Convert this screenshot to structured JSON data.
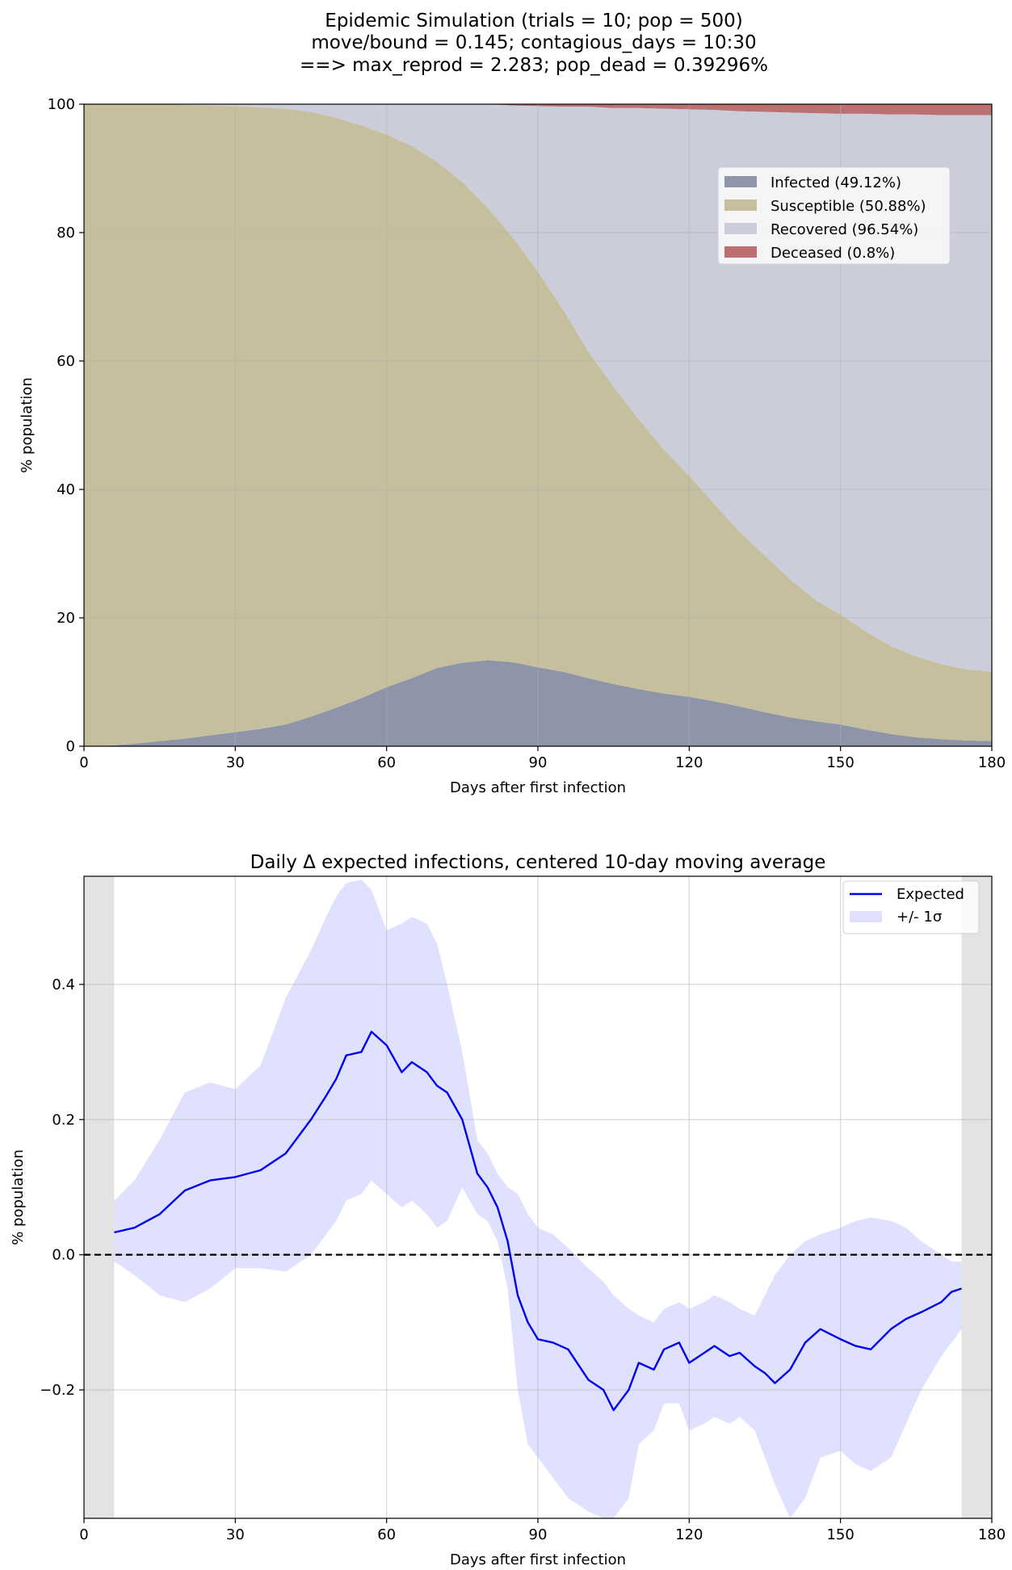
{
  "figure": {
    "title_lines": [
      "Epidemic Simulation (trials = 10; pop = 500)",
      "move/bound = 0.145; contagious_days = 10:30",
      "==> max_reprod = 2.283; pop_dead = 0.39296%"
    ]
  },
  "chart_data": [
    {
      "type": "area",
      "stacked": true,
      "xlabel": "Days after first infection",
      "ylabel": "% population",
      "xlim": [
        0,
        180
      ],
      "ylim": [
        0,
        100
      ],
      "xticks": [
        "0",
        "30",
        "60",
        "90",
        "120",
        "150",
        "180"
      ],
      "yticks": [
        "0",
        "20",
        "40",
        "60",
        "80",
        "100"
      ],
      "grid": true,
      "legend_position": "upper-right",
      "x": [
        0,
        5,
        10,
        15,
        20,
        25,
        30,
        35,
        40,
        45,
        50,
        55,
        60,
        65,
        70,
        75,
        80,
        85,
        90,
        95,
        100,
        105,
        110,
        115,
        120,
        125,
        130,
        135,
        140,
        145,
        150,
        155,
        160,
        165,
        170,
        175,
        180
      ],
      "series": [
        {
          "name": "Infected (49.12%)",
          "color": "#8f95a8",
          "values": [
            0,
            0.1,
            0.4,
            0.8,
            1.2,
            1.7,
            2.2,
            2.7,
            3.4,
            4.6,
            6.0,
            7.5,
            9.2,
            10.6,
            12.2,
            13.0,
            13.4,
            13.1,
            12.3,
            11.6,
            10.6,
            9.7,
            8.9,
            8.2,
            7.7,
            7.0,
            6.2,
            5.3,
            4.5,
            3.9,
            3.4,
            2.6,
            1.9,
            1.4,
            1.1,
            0.9,
            0.8
          ]
        },
        {
          "name": "Susceptible (50.88%)",
          "color": "#c5bf9e",
          "values": [
            100,
            99.9,
            99.6,
            99.2,
            98.7,
            98.1,
            97.5,
            96.8,
            95.9,
            94.2,
            91.9,
            89.2,
            86.1,
            82.9,
            78.8,
            74.9,
            70.5,
            66.2,
            61.6,
            56.4,
            50.9,
            46.3,
            42.0,
            38.0,
            34.4,
            30.7,
            27.2,
            24.4,
            21.5,
            18.9,
            17.1,
            15.3,
            13.7,
            12.6,
            11.7,
            11.1,
            10.8
          ]
        },
        {
          "name": "Recovered (96.54%)",
          "color": "#cccdda",
          "values": [
            0,
            0,
            0,
            0,
            0.1,
            0.2,
            0.3,
            0.5,
            0.7,
            1.2,
            2.1,
            3.3,
            4.7,
            6.5,
            9.0,
            12.1,
            16.1,
            20.5,
            25.8,
            31.6,
            38.1,
            43.4,
            48.5,
            53.1,
            57.1,
            61.4,
            65.5,
            69.1,
            72.7,
            75.8,
            78.0,
            80.6,
            82.8,
            84.4,
            85.5,
            86.3,
            86.7
          ]
        },
        {
          "name": "Deceased (0.8%)",
          "color": "#bd7071",
          "values": [
            0,
            0,
            0,
            0,
            0,
            0,
            0,
            0,
            0,
            0,
            0,
            0,
            0,
            0,
            0,
            0,
            0,
            0.2,
            0.3,
            0.4,
            0.4,
            0.6,
            0.6,
            0.7,
            0.8,
            0.9,
            1.1,
            1.2,
            1.3,
            1.4,
            1.5,
            1.5,
            1.6,
            1.6,
            1.7,
            1.7,
            1.7
          ]
        }
      ]
    },
    {
      "type": "line",
      "title": "Daily Δ expected infections, centered 10-day moving average",
      "xlabel": "Days after first infection",
      "ylabel": "% population",
      "xlim": [
        0,
        180
      ],
      "ylim": [
        -0.39,
        0.56
      ],
      "xticks": [
        "0",
        "30",
        "60",
        "90",
        "120",
        "150",
        "180"
      ],
      "yticks": [
        "−0.2",
        "0.0",
        "0.2",
        "0.4"
      ],
      "ytick_values": [
        -0.2,
        0.0,
        0.2,
        0.4
      ],
      "grid": true,
      "legend_position": "upper-right",
      "shaded_regions": [
        [
          0,
          6
        ],
        [
          174,
          180
        ]
      ],
      "zero_line": true,
      "x": [
        6,
        10,
        15,
        20,
        25,
        30,
        35,
        40,
        45,
        48,
        50,
        52,
        55,
        57,
        60,
        63,
        65,
        68,
        70,
        72,
        75,
        78,
        80,
        82,
        84,
        86,
        88,
        90,
        93,
        96,
        100,
        103,
        105,
        108,
        110,
        113,
        115,
        118,
        120,
        123,
        125,
        128,
        130,
        133,
        135,
        137,
        140,
        143,
        146,
        150,
        153,
        156,
        160,
        163,
        166,
        170,
        172,
        174
      ],
      "series": [
        {
          "name": "Expected",
          "color": "#0000ee",
          "values": [
            0.033,
            0.04,
            0.06,
            0.095,
            0.11,
            0.115,
            0.125,
            0.15,
            0.2,
            0.235,
            0.26,
            0.295,
            0.3,
            0.33,
            0.31,
            0.27,
            0.285,
            0.27,
            0.25,
            0.24,
            0.2,
            0.12,
            0.1,
            0.07,
            0.02,
            -0.06,
            -0.1,
            -0.125,
            -0.13,
            -0.14,
            -0.185,
            -0.2,
            -0.23,
            -0.2,
            -0.16,
            -0.17,
            -0.14,
            -0.13,
            -0.16,
            -0.145,
            -0.135,
            -0.15,
            -0.145,
            -0.165,
            -0.175,
            -0.19,
            -0.17,
            -0.13,
            -0.11,
            -0.125,
            -0.135,
            -0.14,
            -0.11,
            -0.095,
            -0.085,
            -0.07,
            -0.055,
            -0.05
          ]
        },
        {
          "name": "+/- 1σ",
          "color": "#e0e0ff",
          "upper": [
            0.08,
            0.11,
            0.17,
            0.24,
            0.255,
            0.245,
            0.28,
            0.38,
            0.45,
            0.5,
            0.53,
            0.55,
            0.555,
            0.54,
            0.48,
            0.49,
            0.5,
            0.49,
            0.46,
            0.4,
            0.3,
            0.17,
            0.15,
            0.12,
            0.1,
            0.09,
            0.06,
            0.04,
            0.03,
            0.01,
            -0.02,
            -0.04,
            -0.06,
            -0.08,
            -0.09,
            -0.1,
            -0.08,
            -0.07,
            -0.08,
            -0.07,
            -0.06,
            -0.07,
            -0.08,
            -0.09,
            -0.06,
            -0.03,
            0.0,
            0.02,
            0.03,
            0.04,
            0.05,
            0.055,
            0.05,
            0.04,
            0.02,
            0.0,
            -0.01,
            -0.01
          ],
          "lower": [
            -0.01,
            -0.03,
            -0.06,
            -0.07,
            -0.05,
            -0.02,
            -0.02,
            -0.025,
            0.0,
            0.03,
            0.05,
            0.08,
            0.09,
            0.11,
            0.09,
            0.07,
            0.08,
            0.06,
            0.04,
            0.05,
            0.1,
            0.06,
            0.05,
            0.02,
            -0.05,
            -0.2,
            -0.28,
            -0.3,
            -0.33,
            -0.36,
            -0.38,
            -0.39,
            -0.39,
            -0.36,
            -0.28,
            -0.26,
            -0.22,
            -0.22,
            -0.26,
            -0.25,
            -0.24,
            -0.25,
            -0.24,
            -0.26,
            -0.3,
            -0.34,
            -0.39,
            -0.36,
            -0.3,
            -0.29,
            -0.31,
            -0.32,
            -0.3,
            -0.25,
            -0.2,
            -0.15,
            -0.13,
            -0.11
          ]
        }
      ]
    }
  ]
}
